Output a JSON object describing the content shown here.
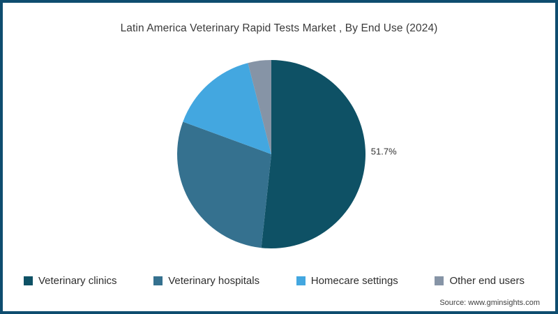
{
  "title": "Latin America Veterinary Rapid Tests Market , By End Use (2024)",
  "source": "Source: www.gminsights.com",
  "colors": {
    "border": "#0f4d6f",
    "background": "#ffffff",
    "title_text": "#3b3b3b",
    "legend_text": "#2e2e2e",
    "slice_label_text": "#333333"
  },
  "chart_data": {
    "type": "pie",
    "title": "Latin America Veterinary Rapid Tests Market , By End Use (2024)",
    "direction": "clockwise",
    "start_angle": "12-o-clock",
    "legend_position": "bottom",
    "center": [
      385,
      217
    ],
    "radius": 135,
    "slices": [
      {
        "name": "Veterinary clinics",
        "value": 51.7,
        "label": "51.7%",
        "color": "#0e5165"
      },
      {
        "name": "Veterinary hospitals",
        "value": 28.9,
        "label": "",
        "color": "#35718f"
      },
      {
        "name": "Homecare settings",
        "value": 15.4,
        "label": "",
        "color": "#43a7e0"
      },
      {
        "name": "Other end users",
        "value": 4.0,
        "label": "",
        "color": "#8694a6"
      }
    ]
  }
}
